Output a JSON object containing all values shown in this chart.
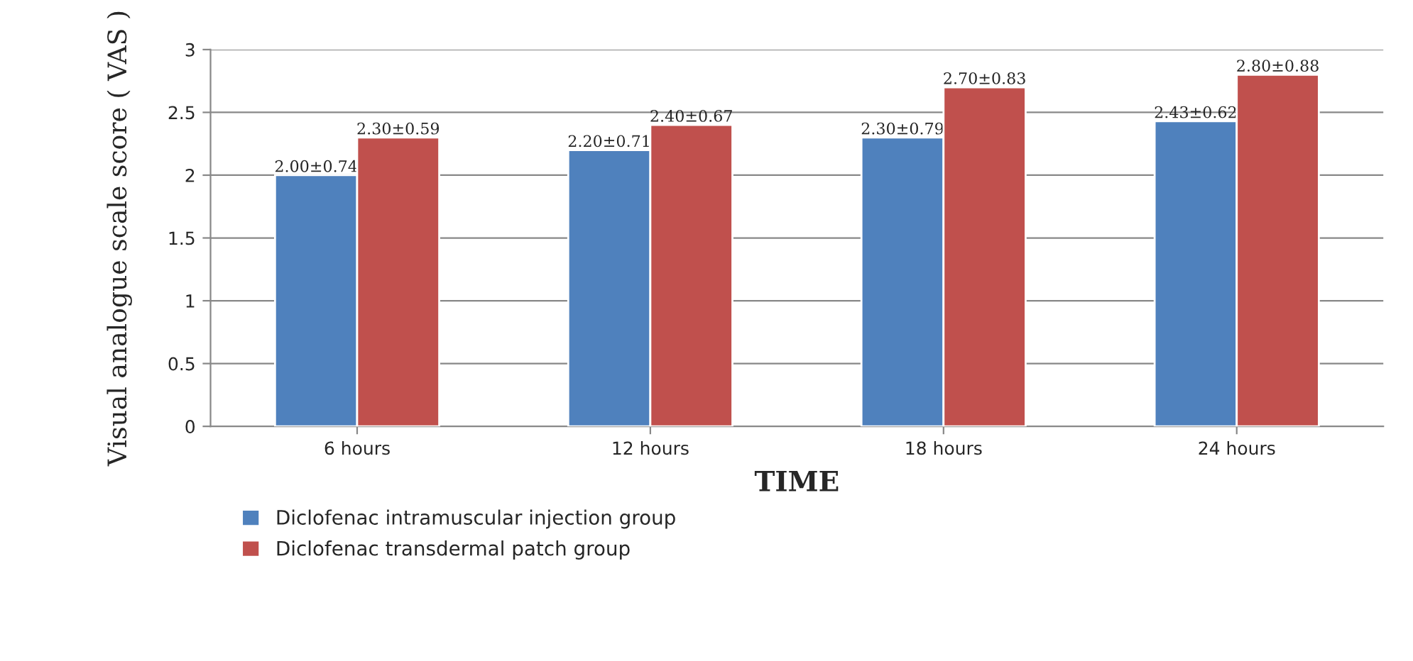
{
  "chart_data": {
    "type": "bar",
    "xlabel": "TIME",
    "ylabel": "Visual analogue scale score ( VAS )",
    "categories": [
      "6 hours",
      "12 hours",
      "18 hours",
      "24 hours"
    ],
    "series": [
      {
        "name": "Diclofenac intramuscular injection group",
        "color": "#4f81bd",
        "values": [
          2.0,
          2.2,
          2.3,
          2.43
        ],
        "value_labels": [
          "2.00±0.74",
          "2.20±0.71",
          "2.30±0.79",
          "2.43±0.62"
        ]
      },
      {
        "name": "Diclofenac transdermal patch group",
        "color": "#c0504d",
        "values": [
          2.3,
          2.4,
          2.7,
          2.8
        ],
        "value_labels": [
          "2.30±0.59",
          "2.40±0.67",
          "2.70±0.83",
          "2.80±0.88"
        ]
      }
    ],
    "ylim": [
      0,
      3
    ],
    "yticks": [
      0,
      0.5,
      1,
      1.5,
      2,
      2.5,
      3
    ],
    "grid": "y",
    "legend": "bottom"
  }
}
